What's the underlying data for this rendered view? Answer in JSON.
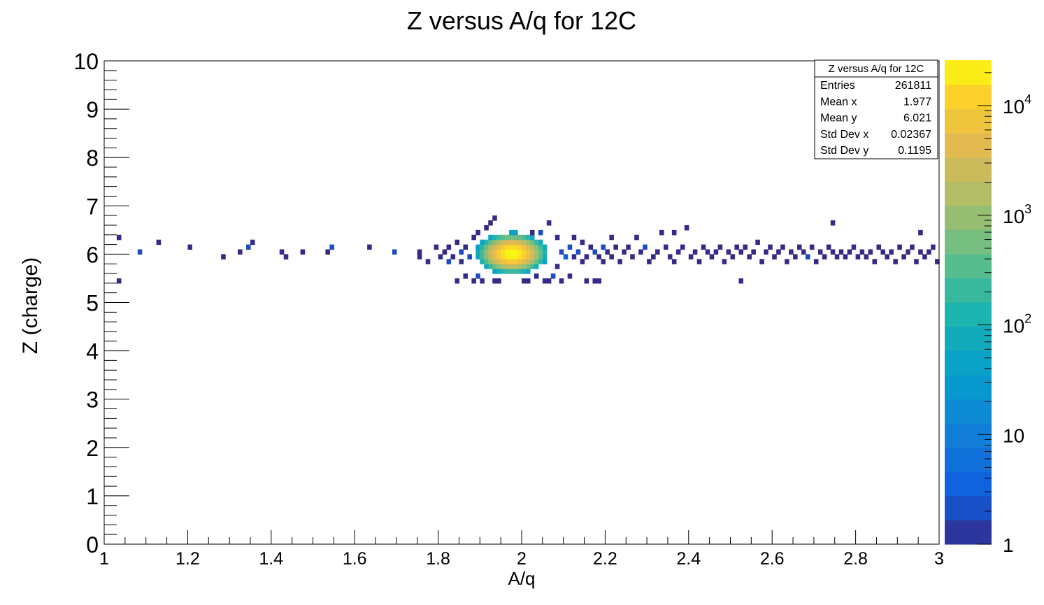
{
  "chart_data": {
    "type": "heatmap",
    "title": "Z versus A/q for 12C",
    "xlabel": "A/q",
    "ylabel": "Z (charge)",
    "xlim": [
      1,
      3
    ],
    "ylim": [
      0,
      10
    ],
    "x_ticks": [
      "1",
      "1.2",
      "1.4",
      "1.6",
      "1.8",
      "2",
      "2.2",
      "2.4",
      "2.6",
      "2.8",
      "3"
    ],
    "y_ticks": [
      "0",
      "1",
      "2",
      "3",
      "4",
      "5",
      "6",
      "7",
      "8",
      "9",
      "10"
    ],
    "z_scale": "log",
    "zlim": [
      1,
      26000
    ],
    "colorbar_ticks": [
      {
        "value": 1,
        "base": "1",
        "exp": ""
      },
      {
        "value": 10,
        "base": "10",
        "exp": ""
      },
      {
        "value": 100,
        "base": "10",
        "exp": "2"
      },
      {
        "value": 1000,
        "base": "10",
        "exp": "3"
      },
      {
        "value": 10000,
        "base": "10",
        "exp": "4"
      }
    ],
    "peak": {
      "x": 1.977,
      "y": 6.02,
      "count": 26000
    },
    "scatter_cells": [
      [
        1.035,
        6.35,
        1
      ],
      [
        1.035,
        5.45,
        1
      ],
      [
        1.085,
        6.05,
        2
      ],
      [
        1.13,
        6.25,
        1
      ],
      [
        1.205,
        6.15,
        1
      ],
      [
        1.285,
        5.95,
        1
      ],
      [
        1.325,
        6.05,
        1
      ],
      [
        1.345,
        6.15,
        2
      ],
      [
        1.355,
        6.25,
        1
      ],
      [
        1.425,
        6.05,
        1
      ],
      [
        1.435,
        5.95,
        1
      ],
      [
        1.475,
        6.05,
        1
      ],
      [
        1.535,
        6.05,
        1
      ],
      [
        1.545,
        6.15,
        2
      ],
      [
        1.635,
        6.15,
        1
      ],
      [
        1.695,
        6.05,
        2
      ],
      [
        1.755,
        5.95,
        1
      ],
      [
        1.755,
        6.05,
        1
      ],
      [
        1.775,
        5.85,
        1
      ],
      [
        1.795,
        6.15,
        1
      ],
      [
        1.805,
        5.95,
        1
      ],
      [
        1.815,
        6.05,
        1
      ],
      [
        1.825,
        6.15,
        1
      ],
      [
        1.825,
        5.85,
        2
      ],
      [
        1.835,
        5.95,
        1
      ],
      [
        1.845,
        6.25,
        1
      ],
      [
        1.845,
        5.45,
        1
      ],
      [
        1.855,
        6.05,
        2
      ],
      [
        1.855,
        5.85,
        1
      ],
      [
        1.865,
        6.15,
        1
      ],
      [
        1.865,
        5.55,
        1
      ],
      [
        1.875,
        5.95,
        2
      ],
      [
        1.885,
        6.35,
        1
      ],
      [
        1.885,
        5.45,
        1
      ],
      [
        1.895,
        6.45,
        1
      ],
      [
        1.895,
        5.55,
        2
      ],
      [
        1.905,
        5.45,
        1
      ],
      [
        1.915,
        6.55,
        1
      ],
      [
        1.925,
        6.65,
        1
      ],
      [
        1.935,
        6.75,
        1
      ],
      [
        1.935,
        5.45,
        1
      ],
      [
        1.945,
        5.45,
        1
      ],
      [
        2.005,
        5.45,
        1
      ],
      [
        2.015,
        5.45,
        1
      ],
      [
        2.025,
        6.45,
        1
      ],
      [
        2.035,
        5.55,
        1
      ],
      [
        2.045,
        6.45,
        2
      ],
      [
        2.055,
        5.45,
        1
      ],
      [
        2.065,
        6.65,
        1
      ],
      [
        2.065,
        5.45,
        1
      ],
      [
        2.075,
        5.55,
        2
      ],
      [
        2.085,
        6.35,
        1
      ],
      [
        2.085,
        5.75,
        1
      ],
      [
        2.095,
        6.05,
        2
      ],
      [
        2.095,
        5.45,
        1
      ],
      [
        2.105,
        5.95,
        3
      ],
      [
        2.115,
        6.15,
        2
      ],
      [
        2.115,
        5.55,
        1
      ],
      [
        2.125,
        6.35,
        1
      ],
      [
        2.125,
        5.95,
        1
      ],
      [
        2.135,
        6.05,
        2
      ],
      [
        2.145,
        6.25,
        1
      ],
      [
        2.145,
        5.85,
        1
      ],
      [
        2.155,
        5.95,
        1
      ],
      [
        2.155,
        5.45,
        1
      ],
      [
        2.165,
        6.15,
        1
      ],
      [
        2.175,
        6.05,
        2
      ],
      [
        2.175,
        5.45,
        1
      ],
      [
        2.185,
        5.95,
        1
      ],
      [
        2.185,
        5.45,
        1
      ],
      [
        2.195,
        6.15,
        2
      ],
      [
        2.195,
        5.85,
        1
      ],
      [
        2.205,
        6.05,
        1
      ],
      [
        2.215,
        6.35,
        1
      ],
      [
        2.215,
        5.95,
        1
      ],
      [
        2.225,
        6.15,
        1
      ],
      [
        2.235,
        5.85,
        1
      ],
      [
        2.245,
        6.05,
        1
      ],
      [
        2.255,
        6.15,
        1
      ],
      [
        2.265,
        5.95,
        1
      ],
      [
        2.275,
        6.35,
        1
      ],
      [
        2.285,
        6.05,
        1
      ],
      [
        2.295,
        6.15,
        2
      ],
      [
        2.305,
        5.85,
        1
      ],
      [
        2.315,
        5.95,
        1
      ],
      [
        2.325,
        6.05,
        1
      ],
      [
        2.335,
        6.45,
        1
      ],
      [
        2.345,
        6.15,
        1
      ],
      [
        2.355,
        5.95,
        1
      ],
      [
        2.365,
        5.85,
        1
      ],
      [
        2.365,
        6.45,
        1
      ],
      [
        2.375,
        6.05,
        1
      ],
      [
        2.385,
        6.15,
        1
      ],
      [
        2.395,
        6.55,
        1
      ],
      [
        2.405,
        5.95,
        1
      ],
      [
        2.415,
        6.05,
        1
      ],
      [
        2.425,
        5.85,
        1
      ],
      [
        2.435,
        6.15,
        1
      ],
      [
        2.445,
        6.05,
        1
      ],
      [
        2.455,
        5.95,
        1
      ],
      [
        2.465,
        6.05,
        1
      ],
      [
        2.475,
        6.15,
        1
      ],
      [
        2.485,
        5.85,
        1
      ],
      [
        2.495,
        6.05,
        1
      ],
      [
        2.505,
        5.95,
        1
      ],
      [
        2.515,
        6.15,
        1
      ],
      [
        2.525,
        5.45,
        1
      ],
      [
        2.525,
        6.05,
        1
      ],
      [
        2.535,
        6.15,
        1
      ],
      [
        2.545,
        5.95,
        1
      ],
      [
        2.555,
        6.05,
        1
      ],
      [
        2.565,
        6.25,
        1
      ],
      [
        2.575,
        5.85,
        1
      ],
      [
        2.585,
        6.05,
        1
      ],
      [
        2.595,
        6.15,
        1
      ],
      [
        2.605,
        5.95,
        1
      ],
      [
        2.615,
        6.05,
        1
      ],
      [
        2.625,
        6.15,
        1
      ],
      [
        2.635,
        5.85,
        1
      ],
      [
        2.645,
        6.05,
        1
      ],
      [
        2.655,
        5.95,
        1
      ],
      [
        2.665,
        6.15,
        1
      ],
      [
        2.675,
        6.05,
        1
      ],
      [
        2.685,
        5.95,
        2
      ],
      [
        2.695,
        6.15,
        1
      ],
      [
        2.705,
        5.85,
        1
      ],
      [
        2.715,
        6.05,
        1
      ],
      [
        2.725,
        5.95,
        1
      ],
      [
        2.735,
        6.15,
        1
      ],
      [
        2.745,
        6.65,
        1
      ],
      [
        2.745,
        6.05,
        1
      ],
      [
        2.755,
        5.95,
        1
      ],
      [
        2.765,
        6.05,
        1
      ],
      [
        2.775,
        5.95,
        1
      ],
      [
        2.785,
        6.05,
        1
      ],
      [
        2.795,
        6.15,
        1
      ],
      [
        2.805,
        5.95,
        1
      ],
      [
        2.815,
        6.05,
        1
      ],
      [
        2.825,
        5.95,
        1
      ],
      [
        2.835,
        6.05,
        1
      ],
      [
        2.845,
        5.85,
        1
      ],
      [
        2.855,
        6.15,
        1
      ],
      [
        2.865,
        6.05,
        1
      ],
      [
        2.875,
        5.95,
        1
      ],
      [
        2.885,
        6.05,
        1
      ],
      [
        2.895,
        5.85,
        1
      ],
      [
        2.905,
        6.15,
        1
      ],
      [
        2.915,
        5.95,
        1
      ],
      [
        2.925,
        6.05,
        1
      ],
      [
        2.935,
        6.15,
        1
      ],
      [
        2.945,
        5.85,
        1
      ],
      [
        2.955,
        6.45,
        1
      ],
      [
        2.955,
        6.05,
        1
      ],
      [
        2.965,
        5.95,
        1
      ],
      [
        2.975,
        6.05,
        1
      ],
      [
        2.985,
        6.15,
        1
      ],
      [
        2.995,
        5.85,
        1
      ]
    ]
  },
  "stats_box": {
    "title": "Z versus A/q for 12C",
    "rows": [
      {
        "label": "Entries",
        "value": "261811"
      },
      {
        "label": "Mean x",
        "value": "1.977"
      },
      {
        "label": "Mean y",
        "value": "6.021"
      },
      {
        "label": "Std Dev x",
        "value": "0.02367"
      },
      {
        "label": "Std Dev y",
        "value": "0.1195"
      }
    ]
  }
}
